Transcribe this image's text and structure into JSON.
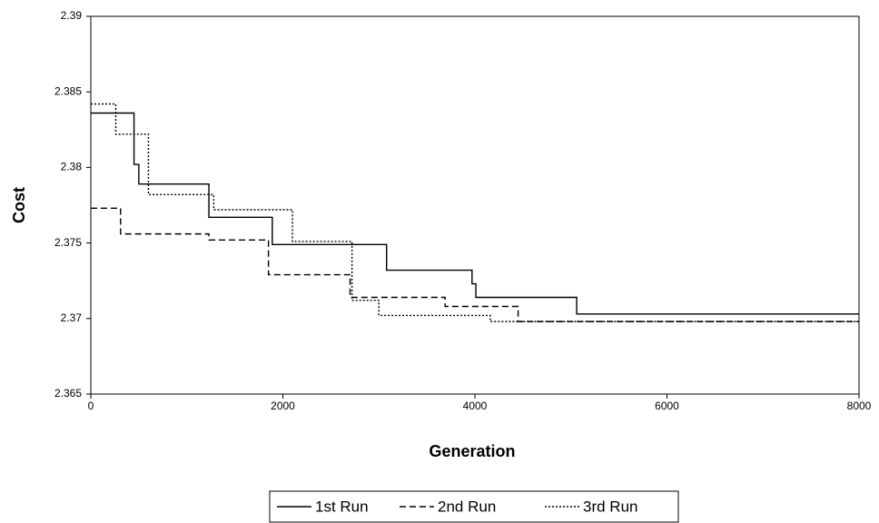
{
  "chart_data": {
    "type": "line",
    "step": true,
    "x_label": "Generation",
    "y_label": "Cost",
    "xlim": [
      0,
      8000
    ],
    "xticks": [
      0,
      2000,
      4000,
      6000,
      8000
    ],
    "ylim": [
      2.365,
      2.39
    ],
    "yticks": [
      2.365,
      2.37,
      2.375,
      2.38,
      2.385,
      2.39
    ],
    "grid": false,
    "legend": "bottom",
    "series": [
      {
        "name": "1st Run",
        "color": "#000000",
        "dash": "solid",
        "x": [
          0,
          450,
          500,
          1230,
          1890,
          3080,
          3970,
          4010,
          5060,
          8000
        ],
        "values": [
          2.3836,
          2.3802,
          2.3789,
          2.3767,
          2.3749,
          2.3732,
          2.3723,
          2.3714,
          2.3703,
          2.3703
        ]
      },
      {
        "name": "2nd Run",
        "color": "#000000",
        "dash": "dashed",
        "x": [
          0,
          310,
          1230,
          1850,
          2700,
          3690,
          4450,
          8000
        ],
        "values": [
          2.3773,
          2.3756,
          2.3752,
          2.3729,
          2.3714,
          2.3708,
          2.3698,
          2.3698
        ]
      },
      {
        "name": "3rd Run",
        "color": "#000000",
        "dash": "dotted",
        "x": [
          0,
          260,
          600,
          1280,
          2100,
          2720,
          3000,
          4160,
          8000
        ],
        "values": [
          2.3842,
          2.3822,
          2.3782,
          2.3772,
          2.3751,
          2.3712,
          2.3702,
          2.3698,
          2.3698
        ]
      }
    ]
  }
}
